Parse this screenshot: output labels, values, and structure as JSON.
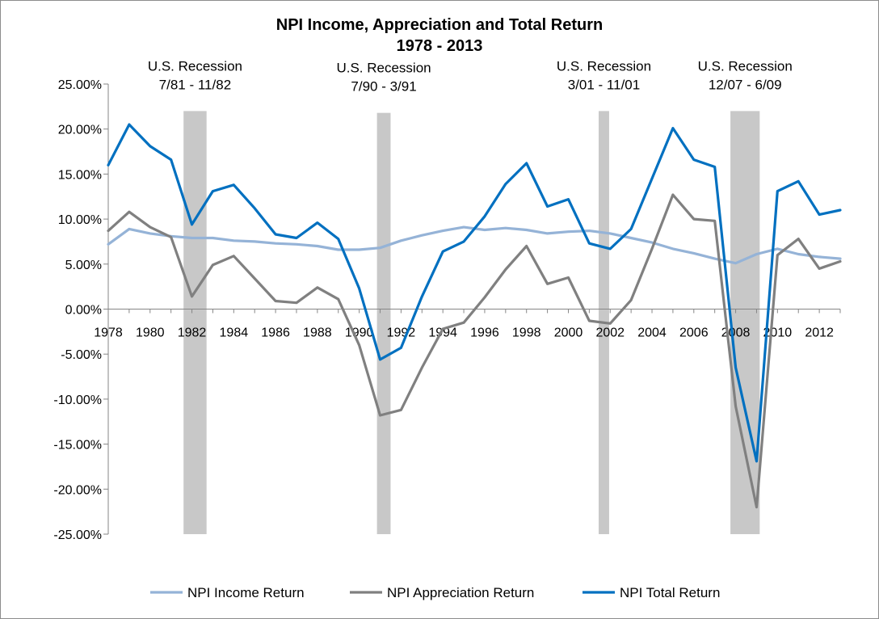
{
  "chart_data": {
    "type": "line",
    "title": "NPI Income, Appreciation and Total Return",
    "subtitle": "1978 - 2013",
    "x": [
      1978,
      1979,
      1980,
      1981,
      1982,
      1983,
      1984,
      1985,
      1986,
      1987,
      1988,
      1989,
      1990,
      1991,
      1992,
      1993,
      1994,
      1995,
      1996,
      1997,
      1998,
      1999,
      2000,
      2001,
      2002,
      2003,
      2004,
      2005,
      2006,
      2007,
      2008,
      2009,
      2010,
      2011,
      2012,
      2013
    ],
    "x_tick_labels": [
      "1978",
      "1980",
      "1982",
      "1984",
      "1986",
      "1988",
      "1990",
      "1992",
      "1994",
      "1996",
      "1998",
      "2000",
      "2002",
      "2004",
      "2006",
      "2008",
      "2010",
      "2012"
    ],
    "ylim": [
      -25,
      25
    ],
    "y_tick_labels": [
      "25.00%",
      "20.00%",
      "15.00%",
      "10.00%",
      "5.00%",
      "0.00%",
      "-5.00%",
      "-10.00%",
      "-15.00%",
      "-20.00%",
      "-25.00%"
    ],
    "y_ticks": [
      25,
      20,
      15,
      10,
      5,
      0,
      -5,
      -10,
      -15,
      -20,
      -25
    ],
    "grid": false,
    "legend_position": "bottom",
    "series": [
      {
        "name": "NPI Income Return",
        "color": "#95b3d7",
        "values": [
          7.2,
          8.9,
          8.4,
          8.1,
          7.9,
          7.9,
          7.6,
          7.5,
          7.3,
          7.2,
          7.0,
          6.6,
          6.6,
          6.8,
          7.6,
          8.2,
          8.7,
          9.1,
          8.8,
          9.0,
          8.8,
          8.4,
          8.6,
          8.7,
          8.4,
          7.9,
          7.4,
          6.7,
          6.2,
          5.6,
          5.1,
          6.1,
          6.7,
          6.1,
          5.8,
          5.6
        ]
      },
      {
        "name": "NPI Appreciation Return",
        "color": "#808080",
        "values": [
          8.7,
          10.8,
          9.1,
          8.0,
          1.4,
          4.9,
          5.9,
          3.4,
          0.9,
          0.7,
          2.4,
          1.1,
          -4.0,
          -11.8,
          -11.2,
          -6.5,
          -2.2,
          -1.5,
          1.3,
          4.4,
          7.0,
          2.8,
          3.5,
          -1.3,
          -1.6,
          1.0,
          6.7,
          12.7,
          10.0,
          9.8,
          -10.8,
          -22.0,
          6.0,
          7.8,
          4.5,
          5.3
        ]
      },
      {
        "name": "NPI Total Return",
        "color": "#0070c0",
        "values": [
          16.0,
          20.5,
          18.1,
          16.6,
          9.4,
          13.1,
          13.8,
          11.2,
          8.3,
          7.9,
          9.6,
          7.8,
          2.3,
          -5.6,
          -4.3,
          1.4,
          6.4,
          7.5,
          10.3,
          13.9,
          16.2,
          11.4,
          12.2,
          7.3,
          6.7,
          8.9,
          14.5,
          20.1,
          16.6,
          15.8,
          -6.5,
          -16.9,
          13.1,
          14.2,
          10.5,
          11.0
        ]
      }
    ],
    "recessions": [
      {
        "label_line1": "U.S. Recession",
        "label_line2": "7/81 - 11/82",
        "start": 1981.6,
        "end": 1982.7,
        "ymax": 22
      },
      {
        "label_line1": "U.S. Recession",
        "label_line2": "7/90 - 3/91",
        "start": 1990.85,
        "end": 1991.5,
        "ymax": 21.8
      },
      {
        "label_line1": "U.S. Recession",
        "label_line2": "3/01 - 11/01",
        "start": 2001.45,
        "end": 2001.95,
        "ymax": 22
      },
      {
        "label_line1": "U.S. Recession",
        "label_line2": "12/07 - 6/09",
        "start": 2007.75,
        "end": 2009.15,
        "ymax": 22
      },
      {
        "label_line1": "",
        "label_line2": "",
        "start": 0,
        "end": 0,
        "ymax": 0
      }
    ],
    "recession_color": "#c8c8c8"
  }
}
